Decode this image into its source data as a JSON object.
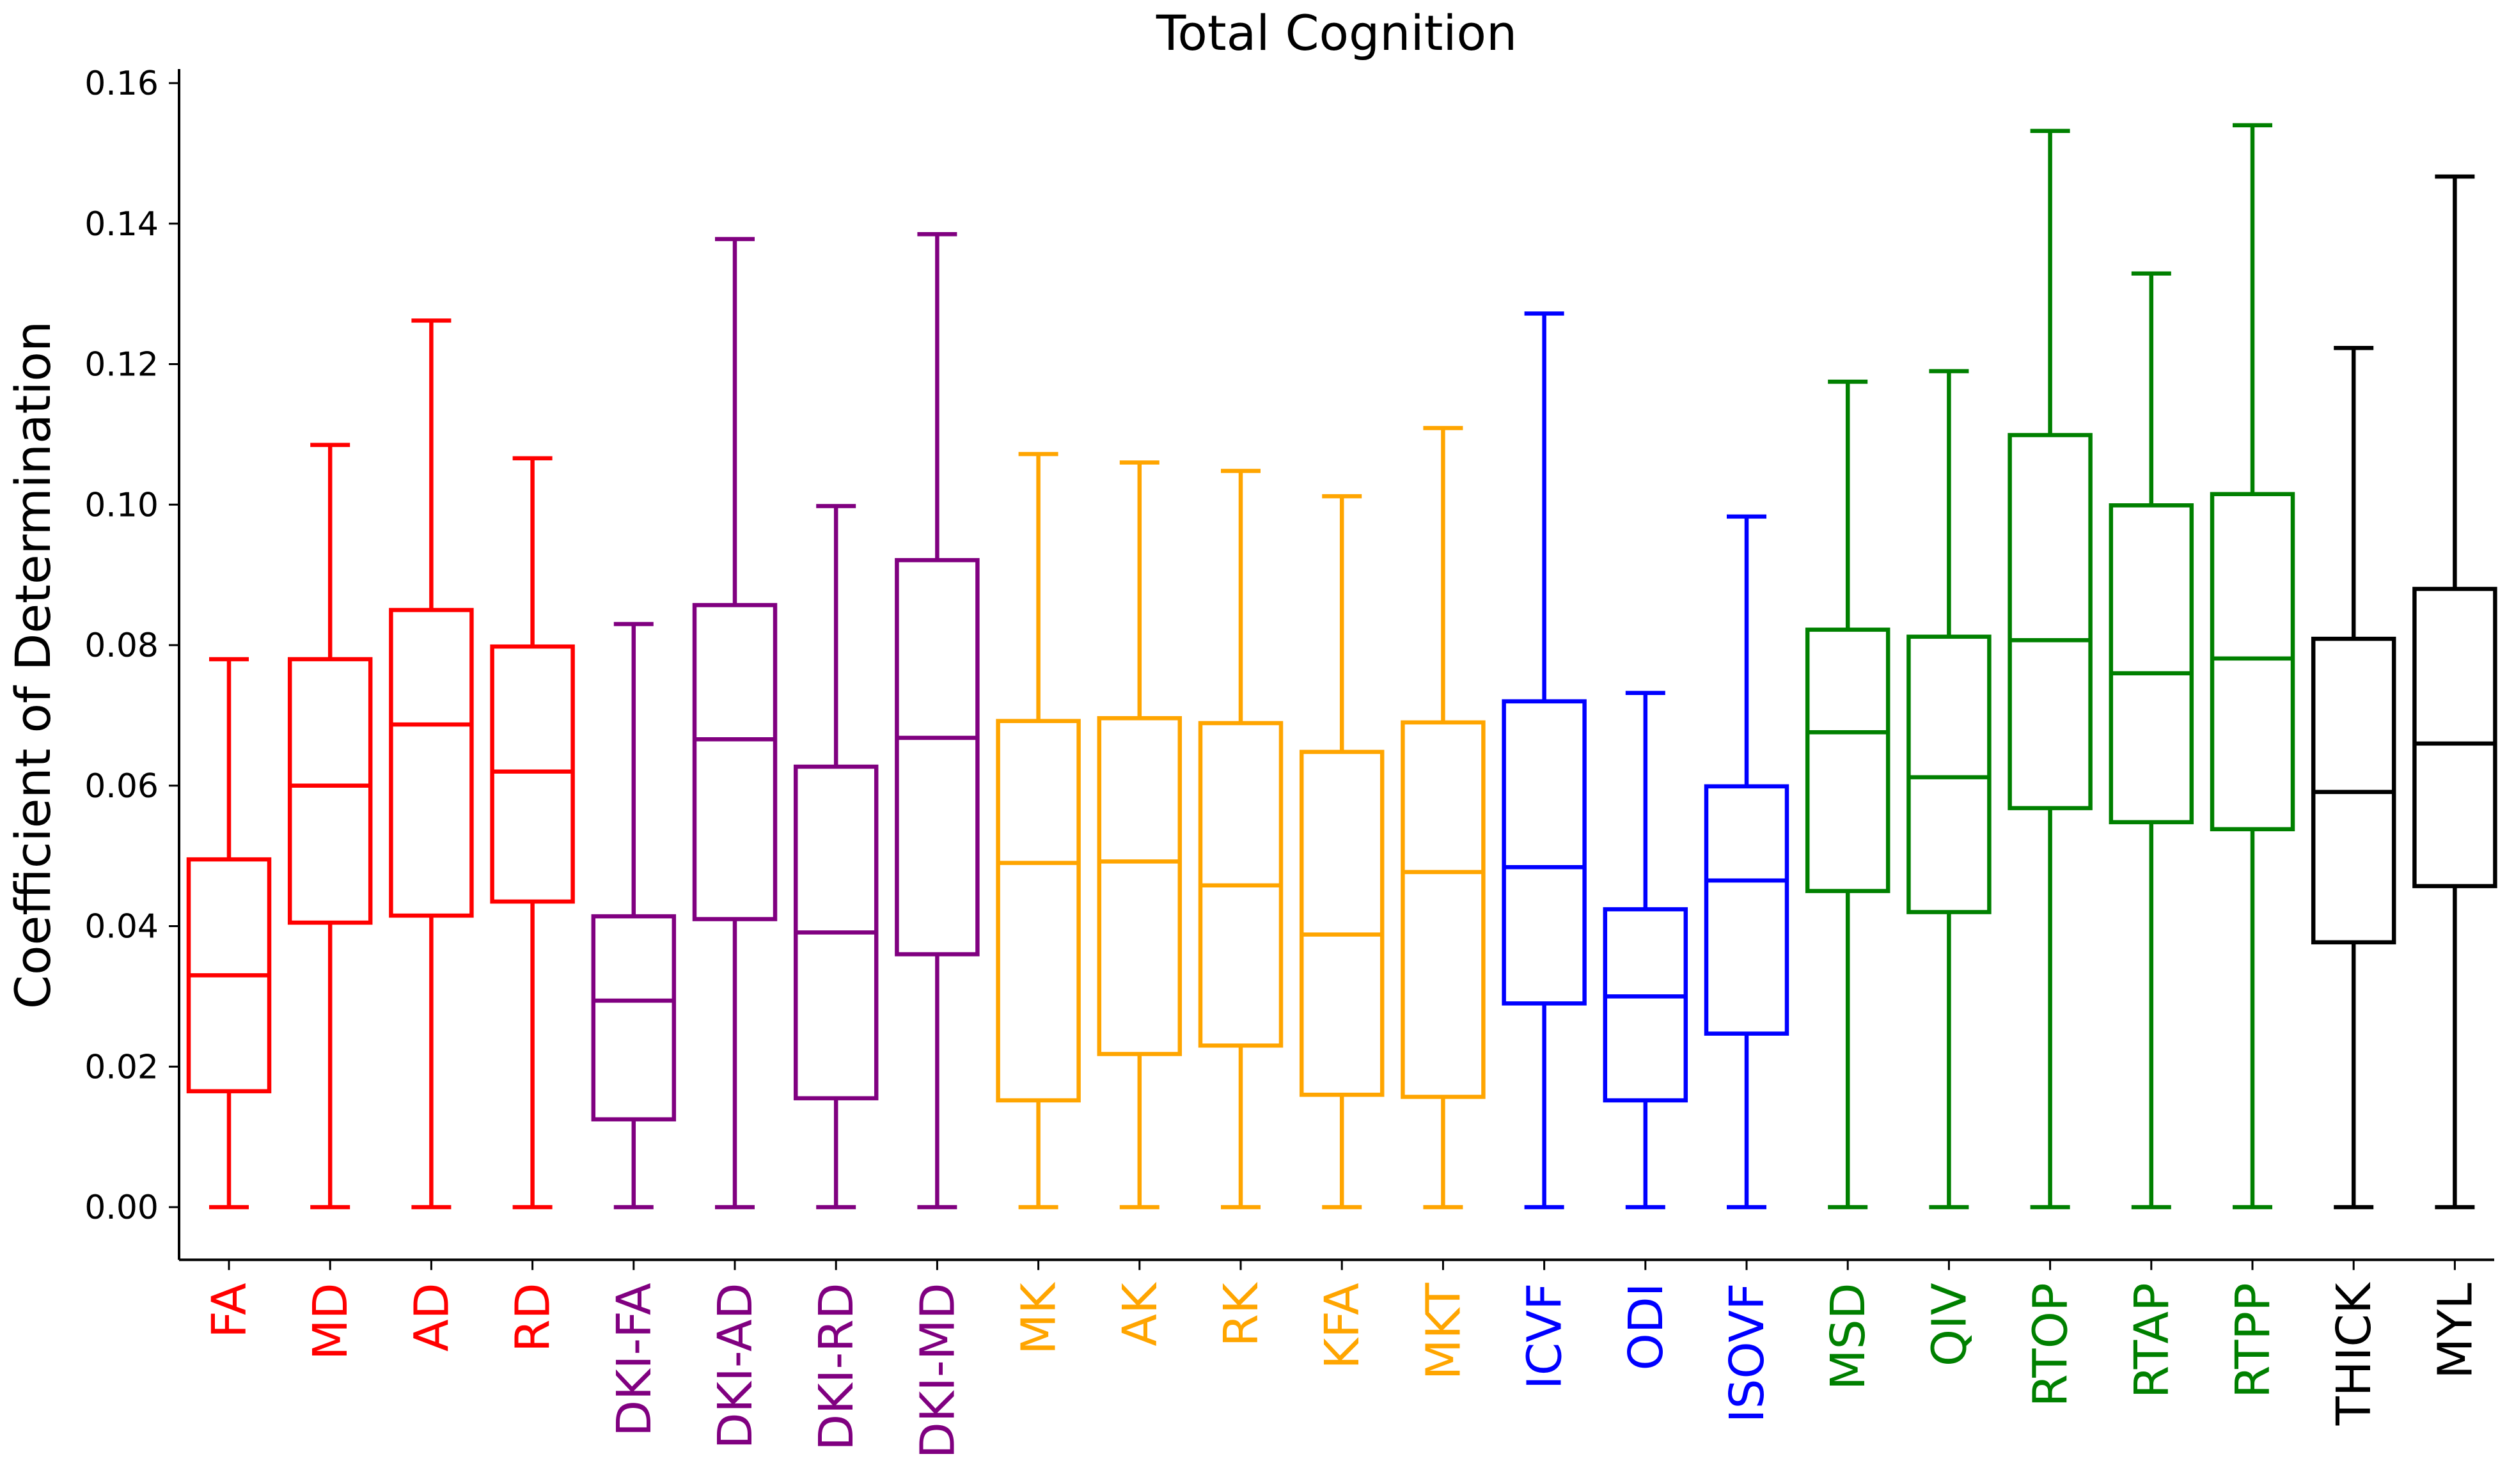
{
  "chart_data": {
    "type": "box",
    "title": "Total Cognition",
    "xlabel": "",
    "ylabel": "Coefficient of Determination",
    "ylim": [
      -0.0075,
      0.162
    ],
    "yticks": [
      0.0,
      0.02,
      0.04,
      0.06,
      0.08,
      0.1,
      0.12,
      0.14,
      0.16
    ],
    "ytick_labels": [
      "0.00",
      "0.02",
      "0.04",
      "0.06",
      "0.08",
      "0.10",
      "0.12",
      "0.14",
      "0.16"
    ],
    "grid": false,
    "group_colors": {
      "DTI": "#ff0000",
      "DKI": "#800080",
      "Kurtosis": "#ffa500",
      "NODDI": "#0000ff",
      "MAP": "#008000",
      "Other": "#000000"
    },
    "series": [
      {
        "name": "FA",
        "color": "#ff0000",
        "whisker_low": 0.0,
        "q1": 0.0165,
        "median": 0.033,
        "q3": 0.0495,
        "whisker_high": 0.078
      },
      {
        "name": "MD",
        "color": "#ff0000",
        "whisker_low": 0.0,
        "q1": 0.0405,
        "median": 0.06,
        "q3": 0.078,
        "whisker_high": 0.1085
      },
      {
        "name": "AD",
        "color": "#ff0000",
        "whisker_low": 0.0,
        "q1": 0.0415,
        "median": 0.0687,
        "q3": 0.085,
        "whisker_high": 0.1262
      },
      {
        "name": "RD",
        "color": "#ff0000",
        "whisker_low": 0.0,
        "q1": 0.0435,
        "median": 0.062,
        "q3": 0.0798,
        "whisker_high": 0.1066
      },
      {
        "name": "DKI-FA",
        "color": "#800080",
        "whisker_low": 0.0,
        "q1": 0.0125,
        "median": 0.0294,
        "q3": 0.0414,
        "whisker_high": 0.083
      },
      {
        "name": "DKI-AD",
        "color": "#800080",
        "whisker_low": 0.0,
        "q1": 0.041,
        "median": 0.0666,
        "q3": 0.0857,
        "whisker_high": 0.1378
      },
      {
        "name": "DKI-RD",
        "color": "#800080",
        "whisker_low": 0.0,
        "q1": 0.0155,
        "median": 0.0391,
        "q3": 0.0627,
        "whisker_high": 0.0998
      },
      {
        "name": "DKI-MD",
        "color": "#800080",
        "whisker_low": 0.0,
        "q1": 0.036,
        "median": 0.0668,
        "q3": 0.0921,
        "whisker_high": 0.1385
      },
      {
        "name": "MK",
        "color": "#ffa500",
        "whisker_low": 0.0,
        "q1": 0.0152,
        "median": 0.049,
        "q3": 0.0692,
        "whisker_high": 0.1072
      },
      {
        "name": "AK",
        "color": "#ffa500",
        "whisker_low": 0.0,
        "q1": 0.0218,
        "median": 0.0492,
        "q3": 0.0696,
        "whisker_high": 0.106
      },
      {
        "name": "RK",
        "color": "#ffa500",
        "whisker_low": 0.0,
        "q1": 0.023,
        "median": 0.0458,
        "q3": 0.0689,
        "whisker_high": 0.1048
      },
      {
        "name": "KFA",
        "color": "#ffa500",
        "whisker_low": 0.0,
        "q1": 0.016,
        "median": 0.0388,
        "q3": 0.0648,
        "whisker_high": 0.1012
      },
      {
        "name": "MKT",
        "color": "#ffa500",
        "whisker_low": 0.0,
        "q1": 0.0157,
        "median": 0.0477,
        "q3": 0.069,
        "whisker_high": 0.1109
      },
      {
        "name": "ICVF",
        "color": "#0000ff",
        "whisker_low": 0.0,
        "q1": 0.029,
        "median": 0.0484,
        "q3": 0.072,
        "whisker_high": 0.1272
      },
      {
        "name": "ODI",
        "color": "#0000ff",
        "whisker_low": 0.0,
        "q1": 0.0152,
        "median": 0.03,
        "q3": 0.0424,
        "whisker_high": 0.0732
      },
      {
        "name": "ISOVF",
        "color": "#0000ff",
        "whisker_low": 0.0,
        "q1": 0.0247,
        "median": 0.0465,
        "q3": 0.0599,
        "whisker_high": 0.0983
      },
      {
        "name": "MSD",
        "color": "#008000",
        "whisker_low": 0.0,
        "q1": 0.045,
        "median": 0.0676,
        "q3": 0.0822,
        "whisker_high": 0.1175
      },
      {
        "name": "QIV",
        "color": "#008000",
        "whisker_low": 0.0,
        "q1": 0.042,
        "median": 0.0612,
        "q3": 0.0812,
        "whisker_high": 0.119
      },
      {
        "name": "RTOP",
        "color": "#008000",
        "whisker_low": 0.0,
        "q1": 0.0568,
        "median": 0.0807,
        "q3": 0.1099,
        "whisker_high": 0.1532
      },
      {
        "name": "RTAP",
        "color": "#008000",
        "whisker_low": 0.0,
        "q1": 0.0548,
        "median": 0.076,
        "q3": 0.0999,
        "whisker_high": 0.1329
      },
      {
        "name": "RTPP",
        "color": "#008000",
        "whisker_low": 0.0,
        "q1": 0.0538,
        "median": 0.0781,
        "q3": 0.1015,
        "whisker_high": 0.154
      },
      {
        "name": "THICK",
        "color": "#000000",
        "whisker_low": 0.0,
        "q1": 0.0377,
        "median": 0.0591,
        "q3": 0.0809,
        "whisker_high": 0.1223
      },
      {
        "name": "MYL",
        "color": "#000000",
        "whisker_low": 0.0,
        "q1": 0.0457,
        "median": 0.066,
        "q3": 0.088,
        "whisker_high": 0.1467
      }
    ]
  }
}
